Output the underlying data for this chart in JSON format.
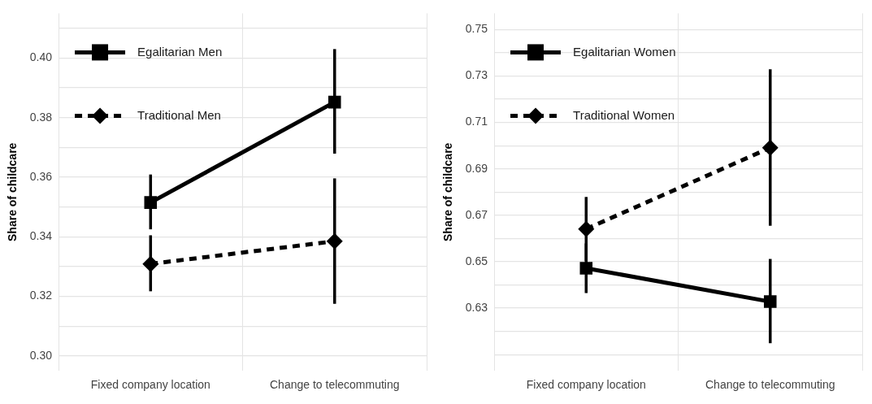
{
  "chart_data": [
    {
      "type": "line",
      "ylabel": "Share of childcare",
      "categories": [
        "Fixed company location",
        "Change to telecommuting"
      ],
      "ylim": [
        0.295,
        0.415
      ],
      "yticks": [
        {
          "value": 0.3,
          "label": "0.30"
        },
        {
          "value": 0.31,
          "label": null
        },
        {
          "value": 0.32,
          "label": "0.32"
        },
        {
          "value": 0.33,
          "label": null
        },
        {
          "value": 0.34,
          "label": "0.34"
        },
        {
          "value": 0.35,
          "label": null
        },
        {
          "value": 0.36,
          "label": "0.36"
        },
        {
          "value": 0.37,
          "label": null
        },
        {
          "value": 0.38,
          "label": "0.38"
        },
        {
          "value": 0.39,
          "label": null
        },
        {
          "value": 0.4,
          "label": "0.40"
        },
        {
          "value": 0.41,
          "label": null
        }
      ],
      "grid": true,
      "legend": "top left",
      "series": [
        {
          "name": "Egalitarian Men",
          "color": "#000000",
          "values": [
            0.3515,
            0.3852
          ],
          "errors": [
            [
              0.3425,
              0.3609
            ],
            [
              0.3679,
              0.403
            ]
          ],
          "marker": "square",
          "line_style": "solid"
        },
        {
          "name": "Traditional Men",
          "color": "#000000",
          "values": [
            0.3309,
            0.3385
          ],
          "errors": [
            [
              0.3217,
              0.3405
            ],
            [
              0.3175,
              0.3596
            ]
          ],
          "marker": "diamond",
          "line_style": "dashed"
        }
      ]
    },
    {
      "type": "line",
      "ylabel": "Share of childcare",
      "categories": [
        "Fixed company location",
        "Change to telecommuting"
      ],
      "ylim": [
        0.603,
        0.757
      ],
      "yticks": [
        {
          "value": 0.61,
          "label": null
        },
        {
          "value": 0.62,
          "label": null
        },
        {
          "value": 0.63,
          "label": "0.63"
        },
        {
          "value": 0.64,
          "label": null
        },
        {
          "value": 0.65,
          "label": "0.65"
        },
        {
          "value": 0.66,
          "label": null
        },
        {
          "value": 0.67,
          "label": "0.67"
        },
        {
          "value": 0.68,
          "label": null
        },
        {
          "value": 0.69,
          "label": "0.69"
        },
        {
          "value": 0.7,
          "label": null
        },
        {
          "value": 0.71,
          "label": "0.71"
        },
        {
          "value": 0.72,
          "label": null
        },
        {
          "value": 0.73,
          "label": "0.73"
        },
        {
          "value": 0.74,
          "label": null
        },
        {
          "value": 0.75,
          "label": "0.75"
        }
      ],
      "grid": true,
      "legend": "top left",
      "series": [
        {
          "name": "Egalitarian Women",
          "color": "#000000",
          "values": [
            0.6472,
            0.6328
          ],
          "errors": [
            [
              0.6365,
              0.6579
            ],
            [
              0.6149,
              0.6512
            ]
          ],
          "marker": "square",
          "line_style": "solid"
        },
        {
          "name": "Traditional Women",
          "color": "#000000",
          "values": [
            0.6641,
            0.6991
          ],
          "errors": [
            [
              0.6503,
              0.6779
            ],
            [
              0.6655,
              0.7329
            ]
          ],
          "marker": "diamond",
          "line_style": "dashed"
        }
      ]
    }
  ]
}
